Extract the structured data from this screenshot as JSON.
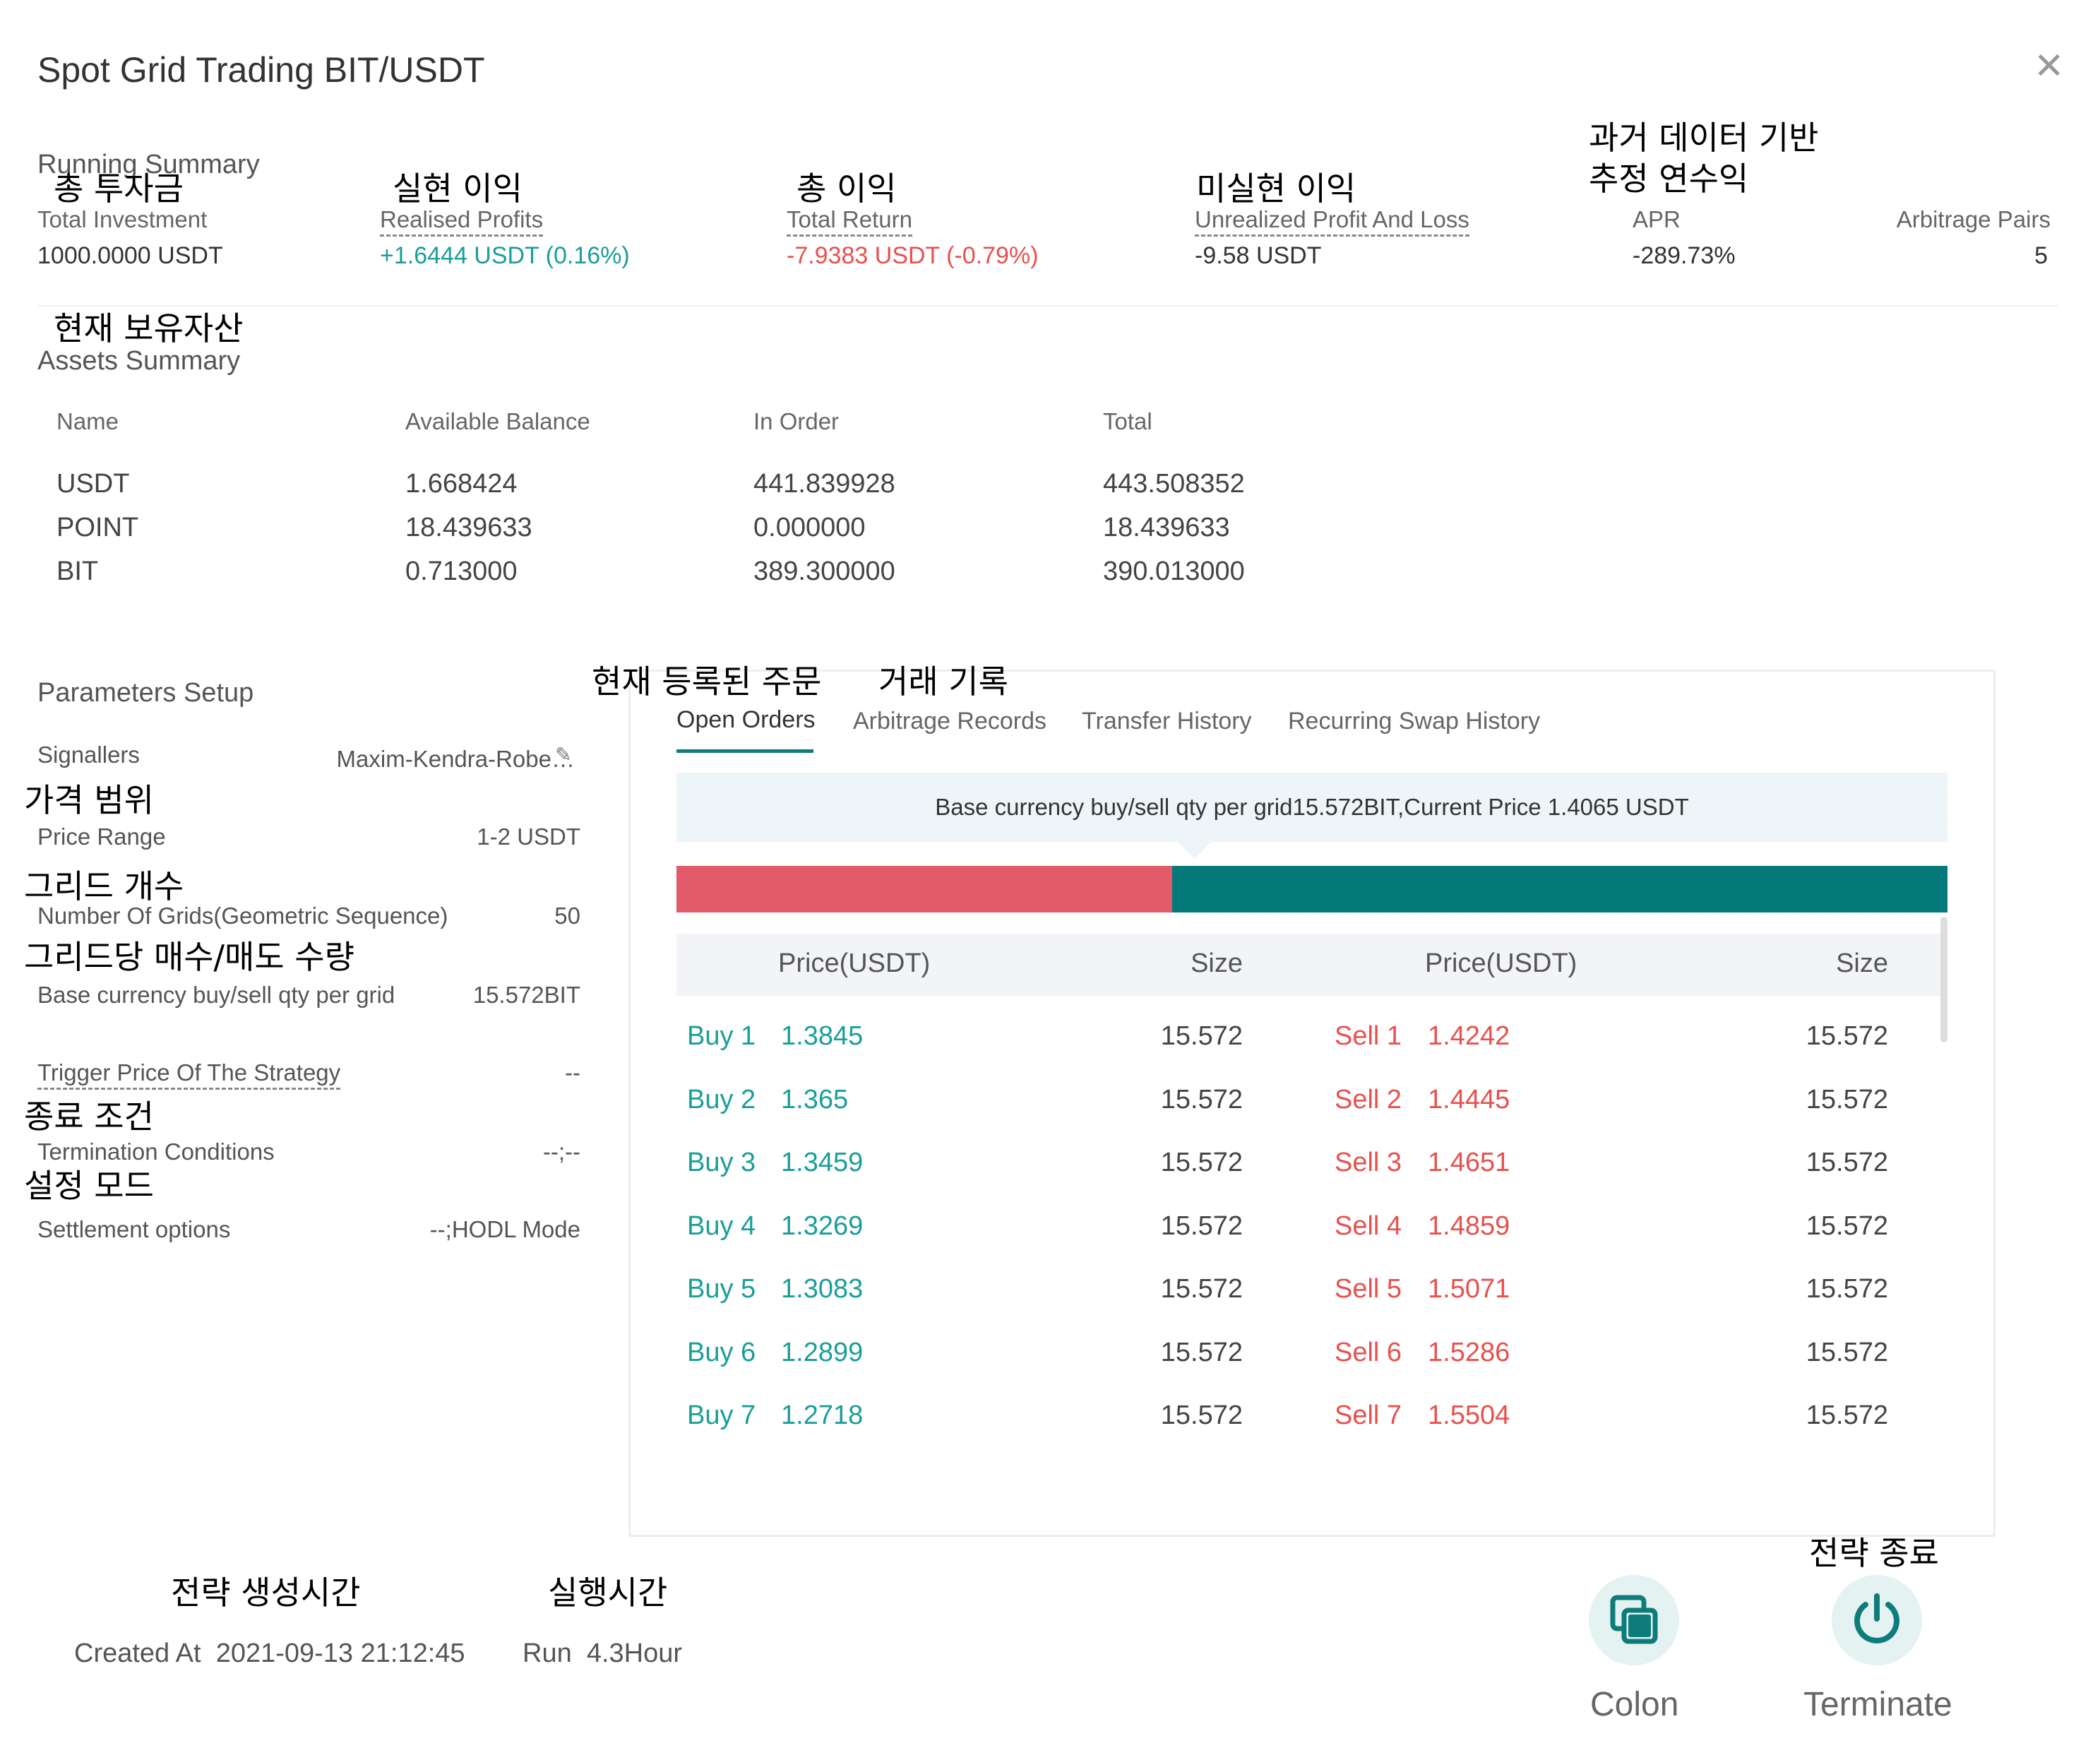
{
  "header": {
    "title": "Spot Grid Trading  BIT/USDT"
  },
  "annotations": {
    "total_investment": "총 투자금",
    "realised_profits": "실현 이익",
    "total_return": "총 이익",
    "unrealized": "미실현 이익",
    "apr_line1": "과거 데이터 기반",
    "apr_line2": "추정 연수익",
    "assets": "현재 보유자산",
    "open_orders": "현재 등록된 주문",
    "records": "거래 기록",
    "price_range": "가격 범위",
    "grids": "그리드 개수",
    "qty": "그리드당 매수/매도 수량",
    "termination": "종료 조건",
    "settlement": "설정 모드",
    "created": "전략 생성시간",
    "run": "실행시간",
    "terminate": "전략 종료"
  },
  "running_summary": {
    "title": "Running Summary",
    "total_investment": {
      "label": "Total Investment",
      "value": "1000.0000 USDT"
    },
    "realised_profits": {
      "label": "Realised Profits",
      "value": "+1.6444 USDT (0.16%)"
    },
    "total_return": {
      "label": "Total Return",
      "value": "-7.9383 USDT (-0.79%)"
    },
    "unrealized": {
      "label": "Unrealized Profit And Loss",
      "value": "-9.58 USDT"
    },
    "apr": {
      "label": "APR",
      "value": "-289.73%"
    },
    "arbitrage_pairs": {
      "label": "Arbitrage Pairs",
      "value": "5"
    }
  },
  "assets_summary": {
    "title": "Assets Summary",
    "headers": [
      "Name",
      "Available Balance",
      "In Order",
      "Total"
    ],
    "rows": [
      [
        "USDT",
        "1.668424",
        "441.839928",
        "443.508352"
      ],
      [
        "POINT",
        "18.439633",
        "0.000000",
        "18.439633"
      ],
      [
        "BIT",
        "0.713000",
        "389.300000",
        "390.013000"
      ]
    ]
  },
  "parameters": {
    "title": "Parameters Setup",
    "signallers": {
      "label": "Signallers",
      "value": "Maxim-Kendra-Robe…"
    },
    "price_range": {
      "label": "Price Range",
      "value": "1-2 USDT"
    },
    "grids": {
      "label": "Number Of Grids(Geometric Sequence)",
      "value": "50"
    },
    "qty": {
      "label": "Base currency buy/sell qty per grid",
      "value": "15.572BIT"
    },
    "trigger": {
      "label": "Trigger Price Of The Strategy",
      "value": "--"
    },
    "termination": {
      "label": "Termination Conditions",
      "value": "--;--"
    },
    "settlement": {
      "label": "Settlement options",
      "value": "--;HODL Mode"
    }
  },
  "tabs": [
    "Open Orders",
    "Arbitrage Records",
    "Transfer History",
    "Recurring Swap History"
  ],
  "orders": {
    "info": "Base currency buy/sell qty per grid15.572BIT,Current Price 1.4065 USDT",
    "buy_ratio": 0.39,
    "headers": {
      "price_buy": "Price(USDT)",
      "size_buy": "Size",
      "price_sell": "Price(USDT)",
      "size_sell": "Size"
    },
    "rows": [
      {
        "buy": "Buy 1",
        "buy_price": "1.3845",
        "buy_size": "15.572",
        "sell": "Sell 1",
        "sell_price": "1.4242",
        "sell_size": "15.572"
      },
      {
        "buy": "Buy 2",
        "buy_price": "1.365",
        "buy_size": "15.572",
        "sell": "Sell 2",
        "sell_price": "1.4445",
        "sell_size": "15.572"
      },
      {
        "buy": "Buy 3",
        "buy_price": "1.3459",
        "buy_size": "15.572",
        "sell": "Sell 3",
        "sell_price": "1.4651",
        "sell_size": "15.572"
      },
      {
        "buy": "Buy 4",
        "buy_price": "1.3269",
        "buy_size": "15.572",
        "sell": "Sell 4",
        "sell_price": "1.4859",
        "sell_size": "15.572"
      },
      {
        "buy": "Buy 5",
        "buy_price": "1.3083",
        "buy_size": "15.572",
        "sell": "Sell 5",
        "sell_price": "1.5071",
        "sell_size": "15.572"
      },
      {
        "buy": "Buy 6",
        "buy_price": "1.2899",
        "buy_size": "15.572",
        "sell": "Sell 6",
        "sell_price": "1.5286",
        "sell_size": "15.572"
      },
      {
        "buy": "Buy 7",
        "buy_price": "1.2718",
        "buy_size": "15.572",
        "sell": "Sell 7",
        "sell_price": "1.5504",
        "sell_size": "15.572"
      }
    ]
  },
  "footer": {
    "created_label": "Created At",
    "created_value": "2021-09-13 21:12:45",
    "run_label": "Run",
    "run_value": "4.3Hour",
    "colon": "Colon",
    "terminate": "Terminate"
  },
  "colors": {
    "accent": "#0e7c7b",
    "positive": "#1a9e98",
    "negative": "#e8504d",
    "bar_sell": "#e35a6a",
    "bar_buy": "#037979"
  },
  "icons": {
    "close": "close-icon",
    "colon": "copy-icon",
    "terminate": "power-icon",
    "signallers": "edit-icon"
  }
}
